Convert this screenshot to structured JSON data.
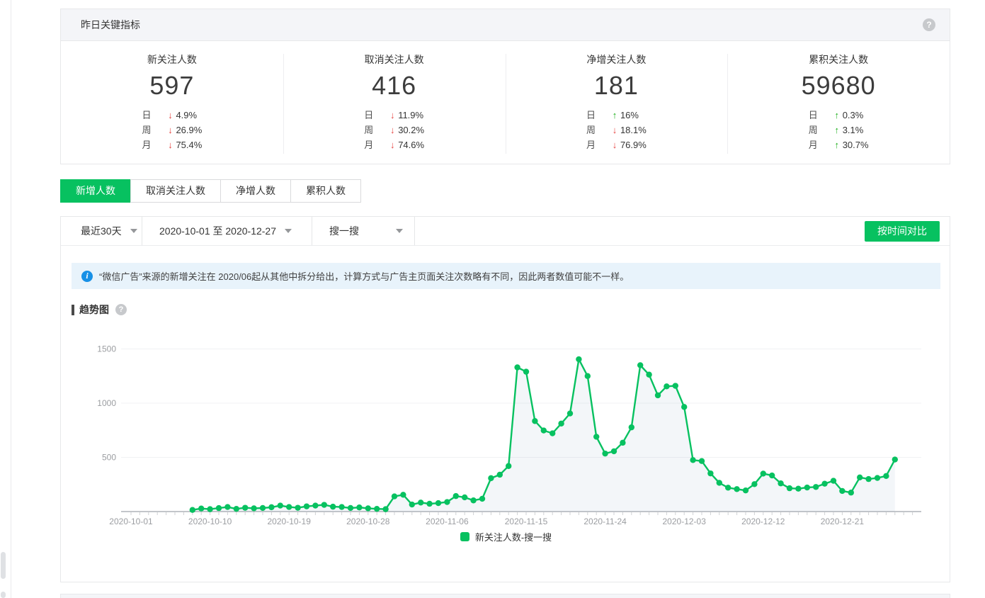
{
  "colors": {
    "accent_green": "#07C160",
    "down_red": "#e64340",
    "up_green": "#1aad19",
    "info_blue": "#1790e6",
    "chart_line": "#07C160"
  },
  "icons": {
    "up": "↑",
    "down": "↓",
    "help": "?",
    "info": "i"
  },
  "kpi_card": {
    "title": "昨日关键指标",
    "metrics": [
      {
        "label": "新关注人数",
        "value": "597",
        "rows": [
          {
            "period": "日",
            "dir": "down",
            "pct": "4.9%"
          },
          {
            "period": "周",
            "dir": "down",
            "pct": "26.9%"
          },
          {
            "period": "月",
            "dir": "down",
            "pct": "75.4%"
          }
        ]
      },
      {
        "label": "取消关注人数",
        "value": "416",
        "rows": [
          {
            "period": "日",
            "dir": "down",
            "pct": "11.9%"
          },
          {
            "period": "周",
            "dir": "down",
            "pct": "30.2%"
          },
          {
            "period": "月",
            "dir": "down",
            "pct": "74.6%"
          }
        ]
      },
      {
        "label": "净增关注人数",
        "value": "181",
        "rows": [
          {
            "period": "日",
            "dir": "up",
            "pct": "16%"
          },
          {
            "period": "周",
            "dir": "down",
            "pct": "18.1%"
          },
          {
            "period": "月",
            "dir": "down",
            "pct": "76.9%"
          }
        ]
      },
      {
        "label": "累积关注人数",
        "value": "59680",
        "rows": [
          {
            "period": "日",
            "dir": "up",
            "pct": "0.3%"
          },
          {
            "period": "周",
            "dir": "up",
            "pct": "3.1%"
          },
          {
            "period": "月",
            "dir": "up",
            "pct": "30.7%"
          }
        ]
      }
    ]
  },
  "tabs": [
    {
      "label": "新增人数",
      "active": true
    },
    {
      "label": "取消关注人数",
      "active": false
    },
    {
      "label": "净增人数",
      "active": false
    },
    {
      "label": "累积人数",
      "active": false
    }
  ],
  "filters": {
    "range_preset": "最近30天",
    "date_range": "2020-10-01 至 2020-12-27",
    "source": "搜一搜",
    "compare_button": "按时间对比"
  },
  "notice_text": "“微信广告”来源的新增关注在 2020/06起从其他中拆分给出，计算方式与广告主页面关注次数略有不同，因此两者数值可能不一样。",
  "trend_section": {
    "title": "趋势图"
  },
  "chart_data": {
    "type": "line",
    "title": "趋势图",
    "x_start": "2020-10-01",
    "x_end": "2020-12-27",
    "x_tick_labels": [
      "2020-10-01",
      "2020-10-10",
      "2020-10-19",
      "2020-10-28",
      "2020-11-06",
      "2020-11-15",
      "2020-11-24",
      "2020-12-03",
      "2020-12-12",
      "2020-12-21"
    ],
    "x_tick_interval_days": 9,
    "y_ticks": [
      500,
      1000,
      1500
    ],
    "ylim": [
      0,
      1600
    ],
    "grid": true,
    "legend_position": "bottom",
    "series": [
      {
        "name": "新关注人数-搜一搜",
        "color": "#07C160",
        "start_date": "2020-10-08",
        "values": [
          15,
          28,
          22,
          32,
          42,
          25,
          35,
          30,
          33,
          40,
          55,
          42,
          35,
          48,
          55,
          62,
          45,
          42,
          33,
          38,
          30,
          25,
          22,
          140,
          155,
          65,
          83,
          72,
          78,
          88,
          143,
          131,
          103,
          118,
          308,
          340,
          420,
          1330,
          1290,
          835,
          748,
          722,
          812,
          905,
          1405,
          1250,
          690,
          535,
          556,
          635,
          777,
          1350,
          1263,
          1072,
          1155,
          1160,
          965,
          475,
          466,
          352,
          265,
          220,
          207,
          195,
          253,
          350,
          333,
          260,
          215,
          211,
          222,
          227,
          257,
          284,
          190,
          175,
          315,
          300,
          310,
          328,
          480
        ]
      }
    ]
  }
}
